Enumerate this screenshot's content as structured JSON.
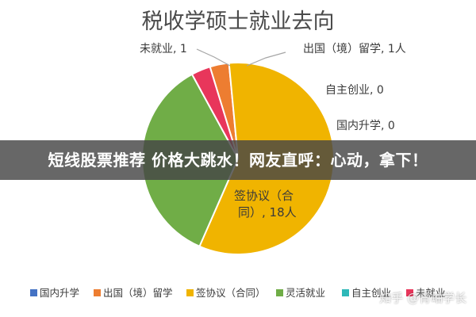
{
  "banner": {
    "text": "短线股票推荐 价格大跳水！网友直呼：心动，拿下！"
  },
  "watermark": {
    "text": "知乎 @青岫学长"
  },
  "chart_data": {
    "type": "pie",
    "title": "税收学硕士就业去向",
    "categories": [
      "国内升学",
      "出国（境）留学",
      "签协议（合同）",
      "灵活就业",
      "自主创业",
      "未就业"
    ],
    "values": [
      0,
      1,
      18,
      11,
      0,
      1
    ],
    "unit": "人",
    "colors": [
      "#4472c4",
      "#ed7d31",
      "#f0b400",
      "#70ad47",
      "#2eb8b8",
      "#e8365b"
    ],
    "legend_position": "bottom",
    "data_labels": [
      {
        "category": "国内升学",
        "text": "国内升学, 0"
      },
      {
        "category": "出国（境）留学",
        "text": "出国（境）留学, 1人"
      },
      {
        "category": "签协议（合同）",
        "text_line1": "签协议（合",
        "text_line2": "同）, 18人"
      },
      {
        "category": "自主创业",
        "text": "自主创业, 0"
      },
      {
        "category": "未就业",
        "text": "未就业, 1"
      }
    ]
  }
}
